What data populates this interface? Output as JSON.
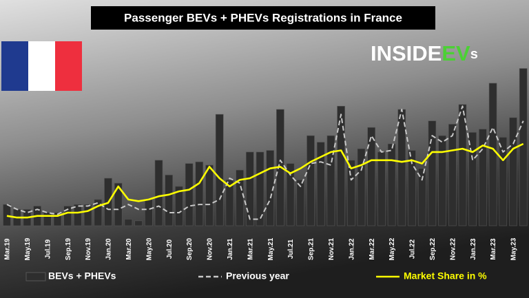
{
  "chart_data": {
    "type": "bar",
    "title": "Passenger BEVs + PHEVs Registrations in France",
    "logo": [
      "INSIDE",
      "EV",
      "s"
    ],
    "categories": [
      "Mar.19",
      null,
      "May.19",
      null,
      "Jul.19",
      null,
      "Sep.19",
      null,
      "Nov.19",
      null,
      "Jan.20",
      null,
      "Mar.20",
      null,
      "May.20",
      null,
      "Jul.20",
      null,
      "Sep.20",
      null,
      "Nov.20",
      null,
      "Jan.21",
      null,
      "Mar.21",
      null,
      "May.21",
      null,
      "Jul.21",
      null,
      "Sep.21",
      null,
      "Nov.21",
      null,
      "Jan.22",
      null,
      "Mar.22",
      null,
      "May.22",
      null,
      "Jul.22",
      null,
      "Sep.22",
      null,
      "Nov.22",
      null,
      "Jan.23",
      null,
      "Mar.23",
      null,
      "May.23",
      null
    ],
    "ylim": [
      0,
      100
    ],
    "series": [
      {
        "name": "BEVs + PHEVs",
        "type": "bar",
        "color": "#2e2e2e",
        "values": [
          13,
          10,
          10,
          12,
          8,
          8,
          12,
          13,
          13,
          16,
          29,
          26,
          4,
          3,
          16,
          40,
          31,
          24,
          38,
          39,
          37,
          68,
          28,
          34,
          45,
          45,
          46,
          71,
          38,
          28,
          55,
          51,
          55,
          73,
          40,
          47,
          60,
          45,
          50,
          71,
          46,
          35,
          64,
          55,
          62,
          74,
          57,
          59,
          87,
          54,
          66,
          96
        ]
      },
      {
        "name": "Previous year",
        "type": "line",
        "color": "#c8c8c8",
        "dashed": true,
        "values": [
          13,
          10,
          8,
          10,
          8,
          7,
          10,
          12,
          12,
          14,
          10,
          10,
          13,
          10,
          10,
          12,
          8,
          8,
          12,
          13,
          13,
          16,
          29,
          26,
          4,
          4,
          16,
          40,
          31,
          24,
          38,
          39,
          37,
          68,
          28,
          34,
          55,
          45,
          46,
          71,
          38,
          28,
          55,
          51,
          55,
          73,
          40,
          47,
          60,
          45,
          50,
          64
        ]
      },
      {
        "name": "Market Share in %",
        "type": "line",
        "color": "#ffff00",
        "dashed": false,
        "values": [
          6,
          5,
          5,
          6,
          6,
          6,
          8,
          8,
          9,
          12,
          14,
          24,
          16,
          15,
          16,
          18,
          19,
          21,
          22,
          26,
          36,
          29,
          24,
          28,
          29,
          32,
          35,
          36,
          32,
          35,
          39,
          42,
          45,
          46,
          35,
          37,
          40,
          40,
          40,
          39,
          40,
          38,
          45,
          45,
          46,
          47,
          45,
          49,
          47,
          40,
          47,
          50
        ]
      }
    ]
  }
}
